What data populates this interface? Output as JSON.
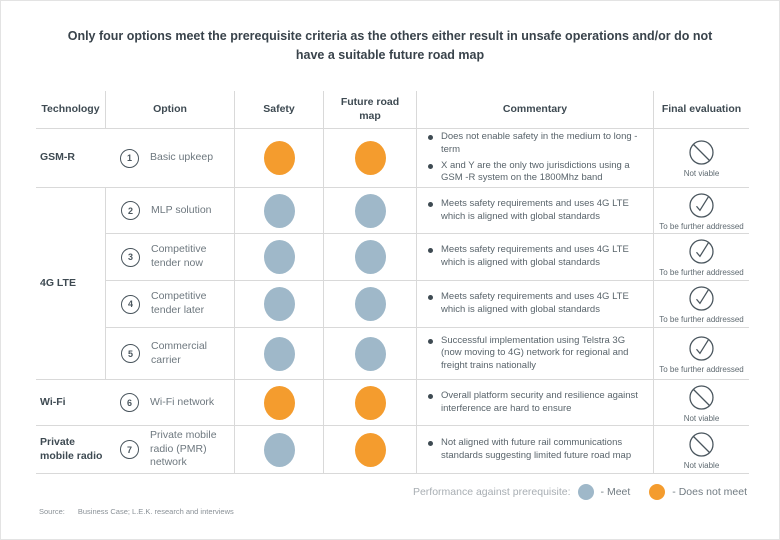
{
  "title": "Only four options meet the prerequisite criteria as the others either result in unsafe operations and/or do not have a suitable future road map",
  "table": {
    "headers": {
      "technology": "Technology",
      "option": "Option",
      "safety": "Safety",
      "future_road_map": "Future road map",
      "commentary": "Commentary",
      "final_evaluation": "Final evaluation"
    },
    "rows": [
      {
        "technology": "GSM-R",
        "number": "1",
        "option": "Basic upkeep",
        "safety": "does_not_meet",
        "future_road_map": "does_not_meet",
        "bullets": [
          "Does not enable safety in the medium to long - term",
          "X and Y are the only two jurisdictions using a GSM -R system on the 1800Mhz band"
        ],
        "evaluation": "not_viable",
        "evaluation_label": "Not viable"
      },
      {
        "technology": "4G LTE",
        "number": "2",
        "option": "MLP solution",
        "safety": "meet",
        "future_road_map": "meet",
        "bullets": [
          "Meets safety requirements and uses 4G LTE which is aligned with global standards"
        ],
        "evaluation": "to_be_addressed",
        "evaluation_label": "To be further addressed"
      },
      {
        "number": "3",
        "option": "Competitive tender now",
        "safety": "meet",
        "future_road_map": "meet",
        "bullets": [
          "Meets safety requirements and uses 4G LTE which is aligned with global standards"
        ],
        "evaluation": "to_be_addressed",
        "evaluation_label": "To be further addressed"
      },
      {
        "number": "4",
        "option": "Competitive tender later",
        "safety": "meet",
        "future_road_map": "meet",
        "bullets": [
          "Meets safety requirements and uses 4G LTE which is aligned with global standards"
        ],
        "evaluation": "to_be_addressed",
        "evaluation_label": "To be further addressed"
      },
      {
        "number": "5",
        "option": "Commercial carrier",
        "safety": "meet",
        "future_road_map": "meet",
        "bullets": [
          "Successful implementation using Telstra 3G (now moving to 4G) network for regional and freight trains nationally"
        ],
        "evaluation": "to_be_addressed",
        "evaluation_label": "To be further addressed"
      },
      {
        "technology": "Wi-Fi",
        "number": "6",
        "option": "Wi-Fi network",
        "safety": "does_not_meet",
        "future_road_map": "does_not_meet",
        "bullets": [
          "Overall platform security and resilience against interference are hard to ensure"
        ],
        "evaluation": "not_viable",
        "evaluation_label": "Not viable"
      },
      {
        "technology": "Private mobile radio",
        "number": "7",
        "option": "Private mobile radio (PMR) network",
        "safety": "meet",
        "future_road_map": "does_not_meet",
        "bullets": [
          "Not aligned with future rail communications standards suggesting limited future road map"
        ],
        "evaluation": "not_viable",
        "evaluation_label": "Not viable"
      }
    ]
  },
  "legend": {
    "label": "Performance against prerequisite:",
    "meet_label": "- Meet",
    "does_not_meet_label": "- Does not meet"
  },
  "source": {
    "label": "Source:",
    "text": "Business Case; L.E.K. research and interviews"
  },
  "colors": {
    "meet": "#9FB8C9",
    "does_not_meet": "#F49C2E",
    "accent_dark": "#46525A"
  }
}
